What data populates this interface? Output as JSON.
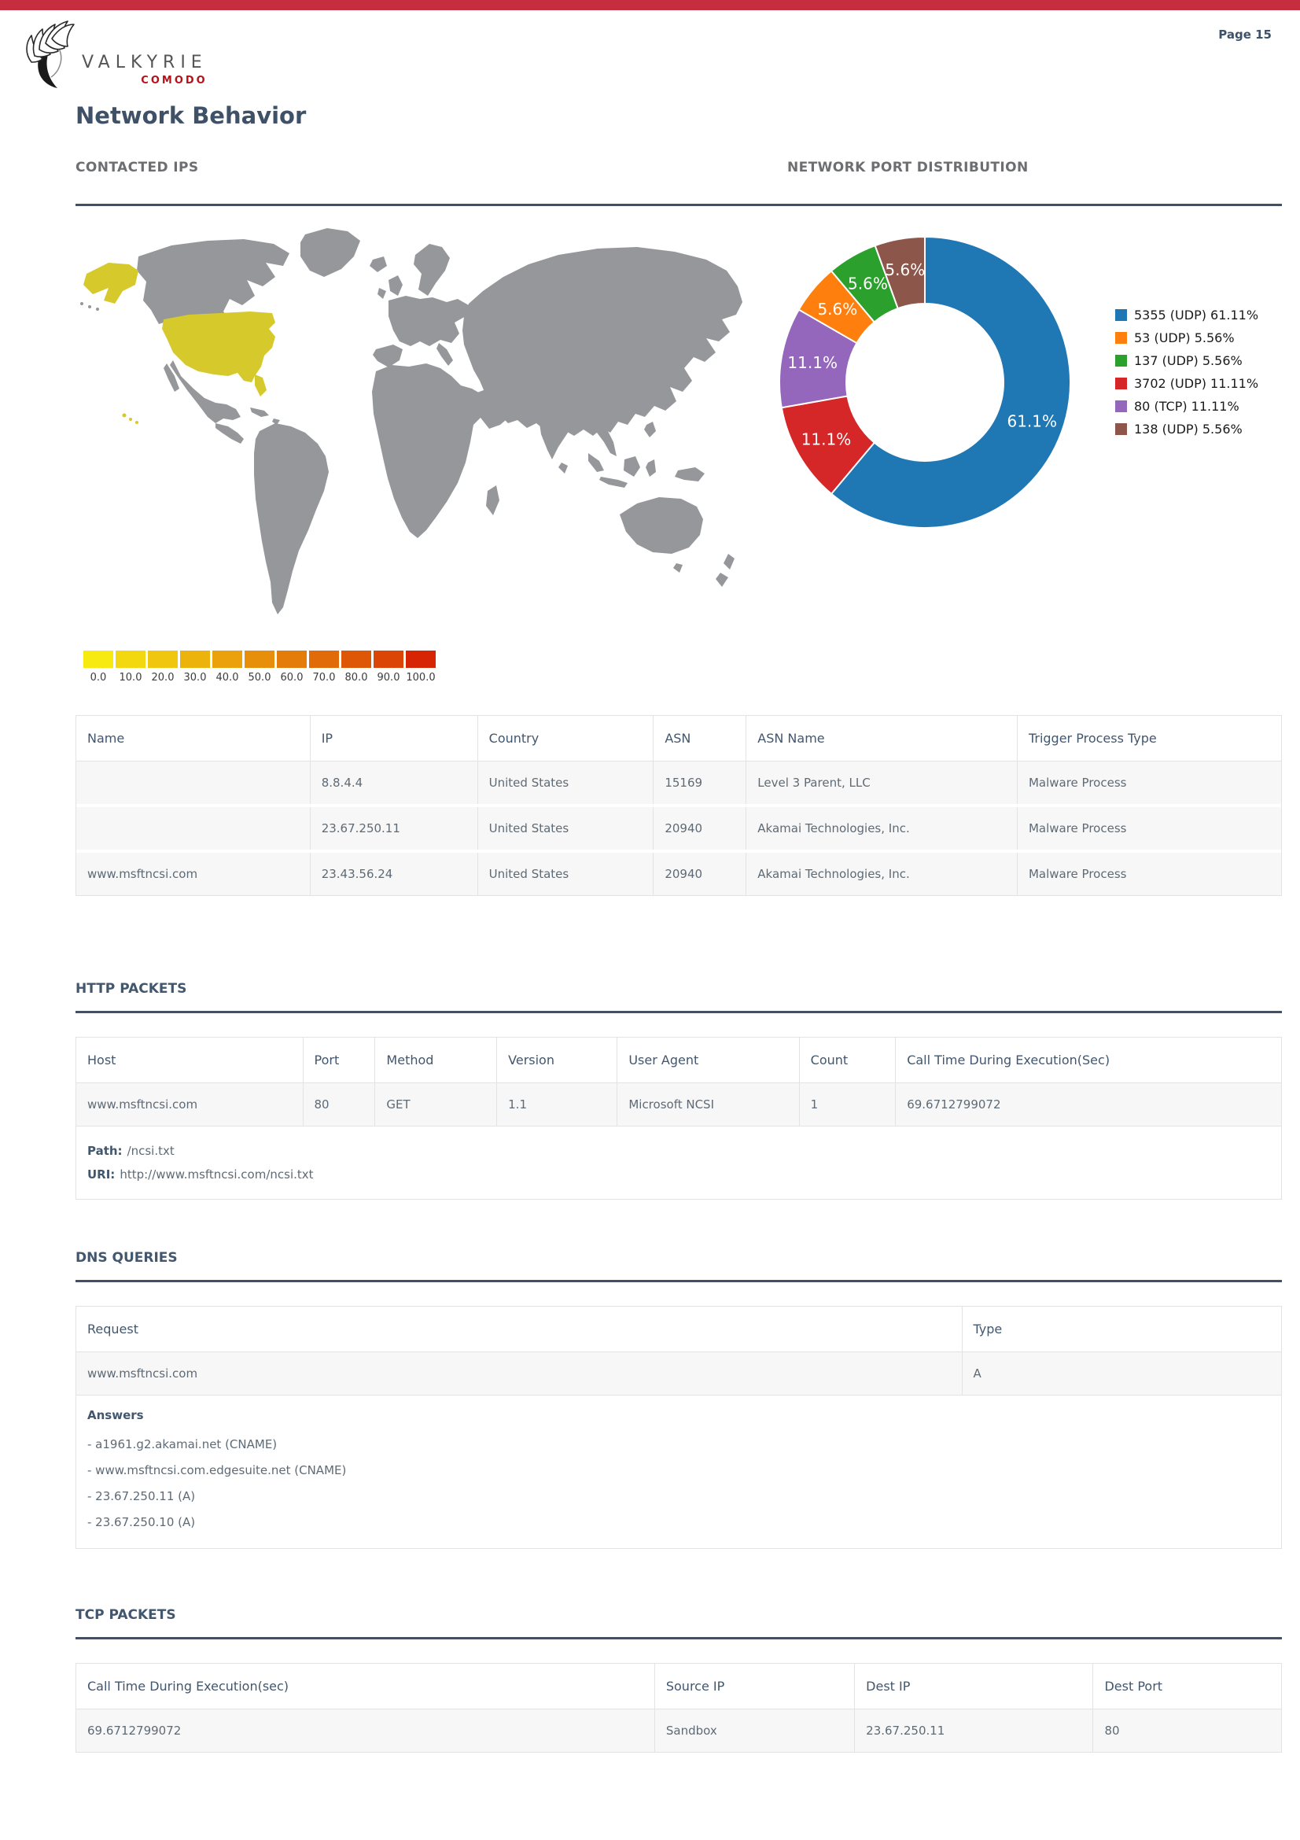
{
  "colors": {
    "topbar": "#c62d3e",
    "heading": "#3e5167",
    "section_gray": "#6d6e71",
    "rule": "#3e5167",
    "brand_red": "#b5121b",
    "table_border": "#e3e3e3",
    "row_bg": "#f7f7f7",
    "cell_text": "#5e6a75",
    "header_text": "#42566e",
    "map_base": "#95979a",
    "map_highlight": "#d5c92b",
    "bottom_bar": "#4a7ebe"
  },
  "header": {
    "page_label": "Page 15",
    "brand_name": "VALKYRIE",
    "brand_sub": "COMODO",
    "title": "Network Behavior"
  },
  "contacted_ips": {
    "title": "CONTACTED IPS",
    "table": {
      "headers": [
        "Name",
        "IP",
        "Country",
        "ASN",
        "ASN Name",
        "Trigger Process Type"
      ],
      "rows": [
        [
          "",
          "8.8.4.4",
          "United States",
          "15169",
          "Level 3 Parent, LLC",
          "Malware Process"
        ],
        [
          "",
          "23.67.250.11",
          "United States",
          "20940",
          "Akamai Technologies, Inc.",
          "Malware Process"
        ],
        [
          "www.msftncsi.com",
          "23.43.56.24",
          "United States",
          "20940",
          "Akamai Technologies, Inc.",
          "Malware Process"
        ]
      ]
    }
  },
  "port_distribution": {
    "title": "NETWORK PORT DISTRIBUTION"
  },
  "http_packets": {
    "title": "HTTP PACKETS",
    "table": {
      "headers": [
        "Host",
        "Port",
        "Method",
        "Version",
        "User Agent",
        "Count",
        "Call Time During Execution(Sec)"
      ],
      "rows": [
        [
          "www.msftncsi.com",
          "80",
          "GET",
          "1.1",
          "Microsoft NCSI",
          "1",
          "69.6712799072"
        ]
      ]
    },
    "path_label": "Path:",
    "path_value": "/ncsi.txt",
    "uri_label": "URI:",
    "uri_value": "http://www.msftncsi.com/ncsi.txt"
  },
  "dns_queries": {
    "title": "DNS QUERIES",
    "table": {
      "headers": [
        "Request",
        "Type"
      ],
      "rows": [
        [
          "www.msftncsi.com",
          "A"
        ]
      ]
    },
    "answers_label": "Answers",
    "answers": [
      "- a1961.g2.akamai.net (CNAME)",
      "- www.msftncsi.com.edgesuite.net (CNAME)",
      "- 23.67.250.11 (A)",
      "- 23.67.250.10 (A)"
    ]
  },
  "tcp_packets": {
    "title": "TCP PACKETS",
    "table": {
      "headers": [
        "Call Time During Execution(sec)",
        "Source IP",
        "Dest IP",
        "Dest Port"
      ],
      "rows": [
        [
          "69.6712799072",
          "Sandbox",
          "23.67.250.11",
          "80"
        ]
      ]
    }
  },
  "chart_data": [
    {
      "type": "pie",
      "title": "NETWORK PORT DISTRIBUTION",
      "labels": [
        "5355 (UDP)",
        "53 (UDP)",
        "137 (UDP)",
        "3702 (UDP)",
        "80 (TCP)",
        "138 (UDP)"
      ],
      "values": [
        61.11,
        5.56,
        5.56,
        11.11,
        11.11,
        5.56
      ],
      "slice_labels": [
        "61.1%",
        "5.6%",
        "5.6%",
        "11.1%",
        "11.1%",
        "5.6%"
      ],
      "legend_labels": [
        "5355 (UDP) 61.11%",
        "53 (UDP) 5.56%",
        "137 (UDP) 5.56%",
        "3702 (UDP) 11.11%",
        "80 (TCP) 11.11%",
        "138 (UDP) 5.56%"
      ],
      "colors": [
        "#1f77b4",
        "#ff7f0e",
        "#2ca02c",
        "#d62728",
        "#9467bd",
        "#8c564b"
      ],
      "draw_order": [
        0,
        3,
        4,
        1,
        2,
        5
      ],
      "start_angle_deg": 0,
      "direction": "clockwise",
      "donut_hole_ratio": 0.54,
      "legend_position": "right"
    },
    {
      "type": "heatmap",
      "title": "CONTACTED IPS",
      "description": "World map choropleth; contacted IP countries highlighted",
      "highlighted_countries": [
        "United States"
      ],
      "highlight_color": "#d5c92b",
      "base_color": "#95979a",
      "scale_min": 0,
      "scale_max": 100,
      "scale_ticks": [
        "0.0",
        "10.0",
        "20.0",
        "30.0",
        "40.0",
        "50.0",
        "60.0",
        "70.0",
        "80.0",
        "90.0",
        "100.0"
      ],
      "scale_colors": [
        "#f6ea10",
        "#f3d80f",
        "#f0c60e",
        "#edb30d",
        "#eaa10c",
        "#e78f0b",
        "#e47c0a",
        "#e16a09",
        "#de5707",
        "#db4506",
        "#d62405"
      ]
    }
  ]
}
